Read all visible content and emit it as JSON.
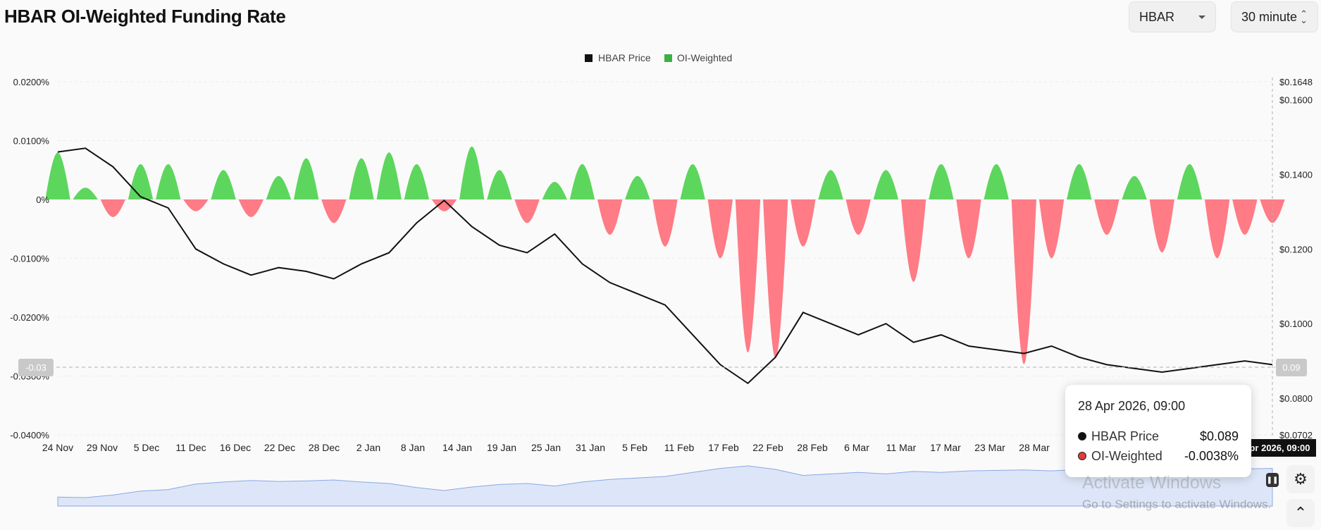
{
  "header": {
    "title": "HBAR OI-Weighted Funding Rate",
    "asset_select": "HBAR",
    "interval_select": "30 minute"
  },
  "legend": [
    {
      "label": "HBAR Price",
      "color": "#111111"
    },
    {
      "label": "OI-Weighted",
      "color": "#3cb043"
    }
  ],
  "crosshair": {
    "left_label": "-0.03",
    "right_label": "0.09",
    "bottom_label": "28 Apr 2026, 09:00"
  },
  "tooltip": {
    "date": "28 Apr 2026, 09:00",
    "rows": [
      {
        "label": "HBAR Price",
        "value": "$0.089",
        "dot_color": "#111111"
      },
      {
        "label": "OI-Weighted",
        "value": "-0.0038%",
        "dot_color": "#e23b3b"
      }
    ]
  },
  "watermark": {
    "line1": "Activate Windows",
    "line2": "Go to Settings to activate Windows."
  },
  "chart_data": {
    "type": "line",
    "colors": {
      "positive": "#5dd65d",
      "negative": "#ff7b85",
      "price": "#111111",
      "navigator": "#8aa8e6"
    },
    "x_ticks": [
      "24 Nov",
      "29 Nov",
      "5 Dec",
      "11 Dec",
      "16 Dec",
      "22 Dec",
      "28 Dec",
      "2 Jan",
      "8 Jan",
      "14 Jan",
      "19 Jan",
      "25 Jan",
      "31 Jan",
      "5 Feb",
      "11 Feb",
      "17 Feb",
      "22 Feb",
      "28 Feb",
      "6 Mar",
      "11 Mar",
      "17 Mar",
      "23 Mar",
      "28 Mar"
    ],
    "y_left": {
      "ticks": [
        "0.0200%",
        "0.0100%",
        "0%",
        "-0.0100%",
        "-0.0200%",
        "-0.0300%",
        "-0.0400%"
      ],
      "values": [
        0.02,
        0.01,
        0,
        -0.01,
        -0.02,
        -0.03,
        -0.04
      ],
      "range": [
        -0.04,
        0.02
      ]
    },
    "y_right": {
      "ticks": [
        "$0.1648",
        "$0.1600",
        "$0.1400",
        "$0.1200",
        "$0.1000",
        "$0.0800",
        "$0.0702"
      ],
      "values": [
        0.1648,
        0.16,
        0.14,
        0.12,
        0.1,
        0.08,
        0.0702
      ],
      "range": [
        0.0702,
        0.1648
      ]
    },
    "series": [
      {
        "name": "HBAR Price",
        "values": [
          0.146,
          0.147,
          0.142,
          0.134,
          0.131,
          0.12,
          0.116,
          0.113,
          0.115,
          0.114,
          0.112,
          0.116,
          0.119,
          0.127,
          0.133,
          0.126,
          0.121,
          0.119,
          0.124,
          0.116,
          0.111,
          0.108,
          0.105,
          0.097,
          0.089,
          0.084,
          0.091,
          0.103,
          0.1,
          0.097,
          0.1,
          0.095,
          0.097,
          0.094,
          0.093,
          0.092,
          0.094,
          0.091,
          0.089,
          0.088,
          0.087,
          0.088,
          0.089,
          0.09,
          0.089
        ]
      },
      {
        "name": "OI-Weighted",
        "values": [
          0.008,
          0.002,
          -0.003,
          0.006,
          0.006,
          -0.002,
          0.005,
          -0.003,
          0.004,
          0.007,
          -0.004,
          0.007,
          0.008,
          0.006,
          -0.002,
          0.009,
          0.005,
          -0.004,
          0.003,
          0.006,
          -0.006,
          0.004,
          -0.008,
          0.006,
          -0.01,
          -0.026,
          -0.027,
          -0.008,
          0.005,
          -0.006,
          0.005,
          -0.014,
          0.006,
          -0.01,
          0.006,
          -0.028,
          -0.01,
          0.006,
          -0.006,
          0.004,
          -0.009,
          0.006,
          -0.01,
          -0.006,
          -0.004
        ]
      }
    ]
  }
}
